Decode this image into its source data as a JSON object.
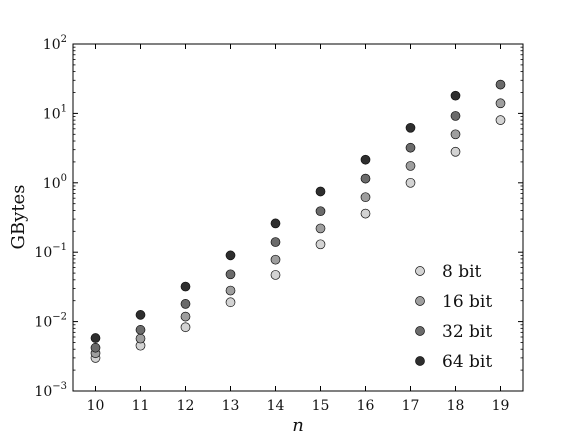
{
  "chart_data": {
    "type": "scatter",
    "title": "",
    "xlabel": "n",
    "ylabel": "GBytes",
    "xlim": [
      9.5,
      19.5
    ],
    "ylim": [
      0.001,
      100
    ],
    "yscale": "log",
    "grid": false,
    "legend_position": "bottom-right",
    "x_ticks": [
      10,
      11,
      12,
      13,
      14,
      15,
      16,
      17,
      18,
      19
    ],
    "y_ticks": [
      {
        "base": "10",
        "exp": "−3"
      },
      {
        "base": "10",
        "exp": "−2"
      },
      {
        "base": "10",
        "exp": "−1"
      },
      {
        "base": "10",
        "exp": "0"
      },
      {
        "base": "10",
        "exp": "1"
      },
      {
        "base": "10",
        "exp": "2"
      }
    ],
    "x": [
      10,
      11,
      12,
      13,
      14,
      15,
      16,
      17,
      18,
      19
    ],
    "series": [
      {
        "name": "8 bit",
        "color": "#d3d3d3",
        "values": [
          0.003,
          0.0045,
          0.0083,
          0.019,
          0.047,
          0.13,
          0.36,
          1.0,
          2.8,
          8.0
        ]
      },
      {
        "name": "16 bit",
        "color": "#9e9e9e",
        "values": [
          0.0035,
          0.0057,
          0.0118,
          0.028,
          0.078,
          0.22,
          0.62,
          1.75,
          5.0,
          14.0
        ]
      },
      {
        "name": "32 bit",
        "color": "#6b6b6b",
        "values": [
          0.0042,
          0.0076,
          0.018,
          0.048,
          0.14,
          0.39,
          1.15,
          3.2,
          9.2,
          26.0
        ]
      },
      {
        "name": "64 bit",
        "color": "#2e2e2e",
        "values": [
          0.0058,
          0.0125,
          0.032,
          0.09,
          0.26,
          0.75,
          2.15,
          6.2,
          18.0,
          null
        ]
      }
    ]
  }
}
